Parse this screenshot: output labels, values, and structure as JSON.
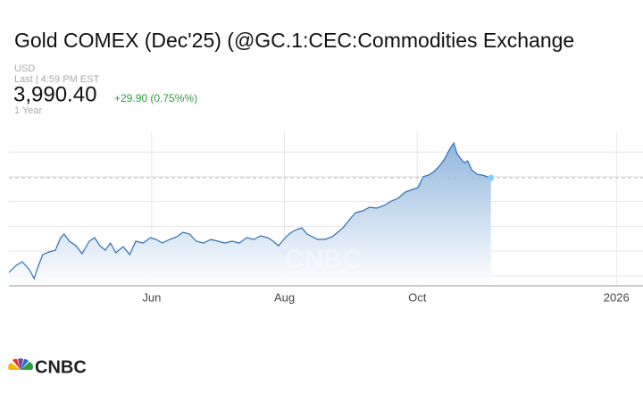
{
  "header": {
    "title": "Gold COMEX (Dec'25) (@GC.1:CEC:Commodities Exchange",
    "currency": "USD",
    "last_time": "Last | 4:59 PM EST",
    "price": {
      "value": 3990.4,
      "label": "3,990.40"
    },
    "change": "+29.90 (0.75%%)",
    "range": "1 Year"
  },
  "chart_data": {
    "type": "area",
    "color": "#2e6eb5",
    "grid": true,
    "x": [
      3.85,
      3.96,
      4.05,
      4.16,
      4.23,
      4.28,
      4.36,
      4.46,
      4.55,
      4.63,
      4.68,
      4.76,
      4.86,
      4.95,
      5.06,
      5.14,
      5.22,
      5.3,
      5.38,
      5.46,
      5.57,
      5.67,
      5.76,
      5.87,
      5.98,
      6.07,
      6.16,
      6.27,
      6.38,
      6.47,
      6.57,
      6.67,
      6.78,
      6.89,
      7.0,
      7.1,
      7.21,
      7.32,
      7.43,
      7.54,
      7.64,
      7.75,
      7.83,
      7.91,
      7.99,
      8.07,
      8.15,
      8.26,
      8.34,
      8.42,
      8.5,
      8.61,
      8.72,
      8.8,
      8.88,
      8.99,
      9.07,
      9.18,
      9.28,
      9.39,
      9.5,
      9.61,
      9.71,
      9.82,
      9.93,
      10.01,
      10.09,
      10.17,
      10.25,
      10.33,
      10.41,
      10.48,
      10.55,
      10.6,
      10.66,
      10.71,
      10.76,
      10.82,
      10.9,
      10.98,
      11.06,
      11.11
    ],
    "values": [
      3035,
      3107,
      3143,
      3062,
      2972,
      3080,
      3215,
      3242,
      3260,
      3387,
      3423,
      3351,
      3305,
      3224,
      3351,
      3387,
      3305,
      3260,
      3332,
      3233,
      3296,
      3215,
      3351,
      3332,
      3387,
      3369,
      3332,
      3369,
      3396,
      3441,
      3423,
      3351,
      3332,
      3369,
      3351,
      3332,
      3351,
      3332,
      3387,
      3369,
      3405,
      3387,
      3351,
      3305,
      3369,
      3423,
      3459,
      3486,
      3423,
      3396,
      3369,
      3369,
      3396,
      3441,
      3486,
      3576,
      3639,
      3657,
      3693,
      3684,
      3711,
      3756,
      3783,
      3846,
      3873,
      3891,
      4001,
      4017,
      4053,
      4107,
      4179,
      4270,
      4342,
      4234,
      4179,
      4143,
      4161,
      4071,
      4026,
      4017,
      4000,
      3990.4
    ],
    "xlim": [
      3.85,
      13.4
    ],
    "xticks": [
      {
        "value": 6,
        "label": "Jun"
      },
      {
        "value": 8,
        "label": "Aug"
      },
      {
        "value": 10,
        "label": "Oct"
      },
      {
        "value": 13,
        "label": "2026"
      }
    ],
    "ylim": [
      2900,
      4450
    ],
    "yticks": [
      3000,
      3250,
      3500,
      3750,
      4000,
      4250
    ]
  },
  "logo": "CNBC"
}
